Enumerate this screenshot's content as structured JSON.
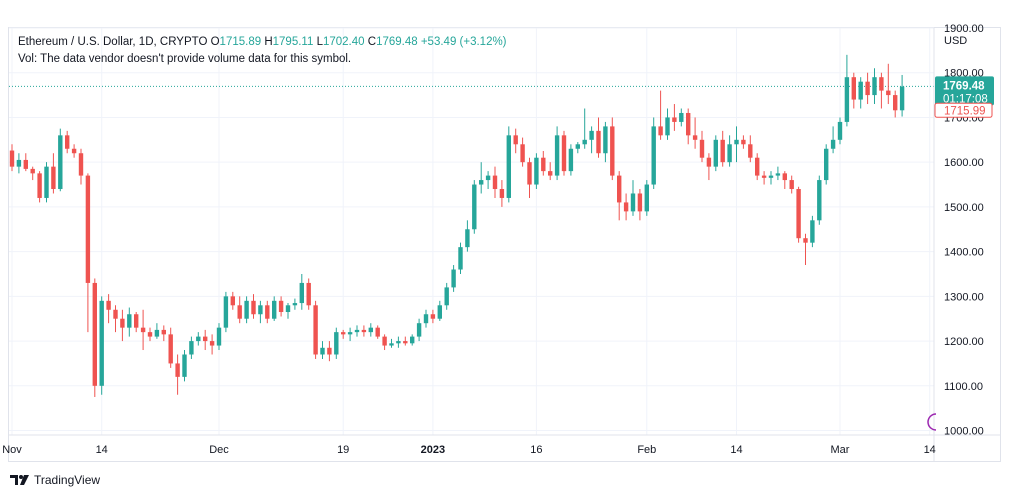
{
  "legend": {
    "symbol": "Ethereum / U.S. Dollar, 1D, CRYPTO",
    "o_label": "O",
    "o_value": "1715.89",
    "h_label": "H",
    "h_value": "1795.11",
    "l_label": "L",
    "l_value": "1702.40",
    "c_label": "C",
    "c_value": "1769.48",
    "change": "+53.49 (+3.12%)",
    "vol_note": "Vol: The data vendor doesn't provide volume data for this symbol."
  },
  "brand": {
    "name": "TradingView"
  },
  "colors": {
    "up": "#26a69a",
    "down": "#ef5350",
    "grid": "#f0f3fa",
    "axis_text": "#131722"
  },
  "chart_data": {
    "type": "candlestick",
    "title": "Ethereum / U.S. Dollar, 1D, CRYPTO",
    "currency_label": "USD",
    "ylim": [
      990,
      1900
    ],
    "y_ticks": [
      "1900.00",
      "1800.00",
      "1700.00",
      "1600.00",
      "1500.00",
      "1400.00",
      "1300.00",
      "1200.00",
      "1100.00",
      "1000.00"
    ],
    "x_ticks": [
      {
        "label": "Nov",
        "index": 0
      },
      {
        "label": "14",
        "index": 13
      },
      {
        "label": "Dec",
        "index": 30
      },
      {
        "label": "19",
        "index": 48
      },
      {
        "label": "2023",
        "index": 61,
        "bold": true
      },
      {
        "label": "16",
        "index": 76
      },
      {
        "label": "Feb",
        "index": 92
      },
      {
        "label": "14",
        "index": 105
      },
      {
        "label": "Mar",
        "index": 120
      },
      {
        "label": "14",
        "index": 133
      }
    ],
    "last_price": "1769.48",
    "last_price_value": 1769.48,
    "countdown": "01:17:08",
    "open_marker": "1715.99",
    "open_marker_value": 1715.99,
    "grid": true,
    "candles": [
      [
        1626,
        1640,
        1580,
        1590
      ],
      [
        1590,
        1620,
        1575,
        1605
      ],
      [
        1605,
        1620,
        1580,
        1585
      ],
      [
        1585,
        1590,
        1560,
        1575
      ],
      [
        1575,
        1580,
        1510,
        1520
      ],
      [
        1520,
        1600,
        1510,
        1590
      ],
      [
        1590,
        1620,
        1530,
        1540
      ],
      [
        1540,
        1675,
        1535,
        1660
      ],
      [
        1660,
        1670,
        1620,
        1630
      ],
      [
        1630,
        1640,
        1610,
        1620
      ],
      [
        1620,
        1630,
        1550,
        1570
      ],
      [
        1570,
        1575,
        1220,
        1330
      ],
      [
        1330,
        1340,
        1075,
        1100
      ],
      [
        1100,
        1300,
        1080,
        1290
      ],
      [
        1290,
        1305,
        1240,
        1270
      ],
      [
        1270,
        1280,
        1220,
        1250
      ],
      [
        1250,
        1270,
        1200,
        1230
      ],
      [
        1230,
        1275,
        1210,
        1260
      ],
      [
        1260,
        1265,
        1220,
        1230
      ],
      [
        1230,
        1270,
        1180,
        1220
      ],
      [
        1220,
        1230,
        1200,
        1210
      ],
      [
        1210,
        1240,
        1205,
        1225
      ],
      [
        1225,
        1235,
        1200,
        1215
      ],
      [
        1215,
        1230,
        1140,
        1150
      ],
      [
        1150,
        1170,
        1080,
        1120
      ],
      [
        1120,
        1180,
        1110,
        1170
      ],
      [
        1170,
        1210,
        1160,
        1200
      ],
      [
        1200,
        1220,
        1190,
        1210
      ],
      [
        1210,
        1225,
        1180,
        1200
      ],
      [
        1200,
        1215,
        1170,
        1190
      ],
      [
        1190,
        1240,
        1180,
        1230
      ],
      [
        1230,
        1310,
        1220,
        1300
      ],
      [
        1300,
        1310,
        1270,
        1280
      ],
      [
        1280,
        1300,
        1240,
        1250
      ],
      [
        1250,
        1300,
        1240,
        1290
      ],
      [
        1290,
        1305,
        1250,
        1260
      ],
      [
        1260,
        1290,
        1240,
        1280
      ],
      [
        1280,
        1290,
        1240,
        1250
      ],
      [
        1250,
        1300,
        1245,
        1290
      ],
      [
        1290,
        1300,
        1255,
        1265
      ],
      [
        1265,
        1285,
        1250,
        1280
      ],
      [
        1280,
        1295,
        1270,
        1285
      ],
      [
        1285,
        1350,
        1270,
        1330
      ],
      [
        1330,
        1340,
        1270,
        1280
      ],
      [
        1280,
        1290,
        1160,
        1170
      ],
      [
        1170,
        1200,
        1160,
        1185
      ],
      [
        1185,
        1200,
        1155,
        1170
      ],
      [
        1170,
        1230,
        1160,
        1220
      ],
      [
        1220,
        1225,
        1205,
        1215
      ],
      [
        1215,
        1230,
        1200,
        1220
      ],
      [
        1220,
        1235,
        1210,
        1225
      ],
      [
        1225,
        1235,
        1210,
        1220
      ],
      [
        1220,
        1240,
        1210,
        1230
      ],
      [
        1230,
        1235,
        1205,
        1210
      ],
      [
        1210,
        1215,
        1180,
        1190
      ],
      [
        1190,
        1205,
        1185,
        1195
      ],
      [
        1195,
        1210,
        1185,
        1200
      ],
      [
        1200,
        1210,
        1190,
        1195
      ],
      [
        1195,
        1215,
        1190,
        1210
      ],
      [
        1210,
        1250,
        1200,
        1240
      ],
      [
        1240,
        1270,
        1230,
        1260
      ],
      [
        1260,
        1270,
        1240,
        1250
      ],
      [
        1250,
        1290,
        1245,
        1280
      ],
      [
        1280,
        1330,
        1270,
        1320
      ],
      [
        1320,
        1370,
        1310,
        1360
      ],
      [
        1360,
        1420,
        1350,
        1410
      ],
      [
        1410,
        1470,
        1400,
        1450
      ],
      [
        1450,
        1560,
        1440,
        1550
      ],
      [
        1550,
        1600,
        1530,
        1560
      ],
      [
        1560,
        1580,
        1540,
        1570
      ],
      [
        1570,
        1590,
        1520,
        1540
      ],
      [
        1540,
        1560,
        1500,
        1520
      ],
      [
        1520,
        1680,
        1510,
        1660
      ],
      [
        1660,
        1675,
        1620,
        1640
      ],
      [
        1640,
        1655,
        1590,
        1600
      ],
      [
        1600,
        1610,
        1520,
        1550
      ],
      [
        1550,
        1620,
        1540,
        1610
      ],
      [
        1610,
        1625,
        1570,
        1580
      ],
      [
        1580,
        1600,
        1560,
        1570
      ],
      [
        1570,
        1680,
        1560,
        1660
      ],
      [
        1660,
        1670,
        1570,
        1580
      ],
      [
        1580,
        1640,
        1570,
        1630
      ],
      [
        1630,
        1645,
        1620,
        1640
      ],
      [
        1640,
        1720,
        1630,
        1650
      ],
      [
        1650,
        1680,
        1620,
        1670
      ],
      [
        1670,
        1700,
        1610,
        1620
      ],
      [
        1620,
        1690,
        1600,
        1680
      ],
      [
        1680,
        1700,
        1560,
        1570
      ],
      [
        1570,
        1580,
        1470,
        1510
      ],
      [
        1510,
        1530,
        1470,
        1490
      ],
      [
        1490,
        1560,
        1480,
        1530
      ],
      [
        1530,
        1540,
        1470,
        1490
      ],
      [
        1490,
        1560,
        1480,
        1550
      ],
      [
        1550,
        1700,
        1540,
        1680
      ],
      [
        1680,
        1760,
        1650,
        1660
      ],
      [
        1660,
        1720,
        1650,
        1700
      ],
      [
        1700,
        1730,
        1670,
        1690
      ],
      [
        1690,
        1720,
        1680,
        1710
      ],
      [
        1710,
        1720,
        1640,
        1660
      ],
      [
        1660,
        1700,
        1630,
        1650
      ],
      [
        1650,
        1670,
        1600,
        1610
      ],
      [
        1610,
        1620,
        1560,
        1590
      ],
      [
        1590,
        1660,
        1580,
        1650
      ],
      [
        1650,
        1670,
        1590,
        1600
      ],
      [
        1600,
        1660,
        1590,
        1640
      ],
      [
        1640,
        1680,
        1600,
        1650
      ],
      [
        1650,
        1660,
        1630,
        1640
      ],
      [
        1640,
        1660,
        1600,
        1610
      ],
      [
        1610,
        1620,
        1560,
        1570
      ],
      [
        1570,
        1580,
        1550,
        1565
      ],
      [
        1565,
        1580,
        1550,
        1570
      ],
      [
        1570,
        1590,
        1560,
        1575
      ],
      [
        1575,
        1580,
        1540,
        1560
      ],
      [
        1560,
        1570,
        1530,
        1540
      ],
      [
        1540,
        1545,
        1420,
        1430
      ],
      [
        1430,
        1440,
        1370,
        1420
      ],
      [
        1420,
        1480,
        1410,
        1470
      ],
      [
        1470,
        1570,
        1460,
        1560
      ],
      [
        1560,
        1640,
        1550,
        1630
      ],
      [
        1630,
        1680,
        1620,
        1650
      ],
      [
        1650,
        1700,
        1640,
        1690
      ],
      [
        1690,
        1840,
        1680,
        1790
      ],
      [
        1790,
        1800,
        1720,
        1740
      ],
      [
        1740,
        1790,
        1720,
        1780
      ],
      [
        1780,
        1800,
        1730,
        1750
      ],
      [
        1750,
        1810,
        1730,
        1790
      ],
      [
        1790,
        1800,
        1720,
        1760
      ],
      [
        1760,
        1820,
        1730,
        1750
      ],
      [
        1750,
        1760,
        1700,
        1716
      ],
      [
        1716,
        1795,
        1702,
        1769
      ]
    ]
  }
}
